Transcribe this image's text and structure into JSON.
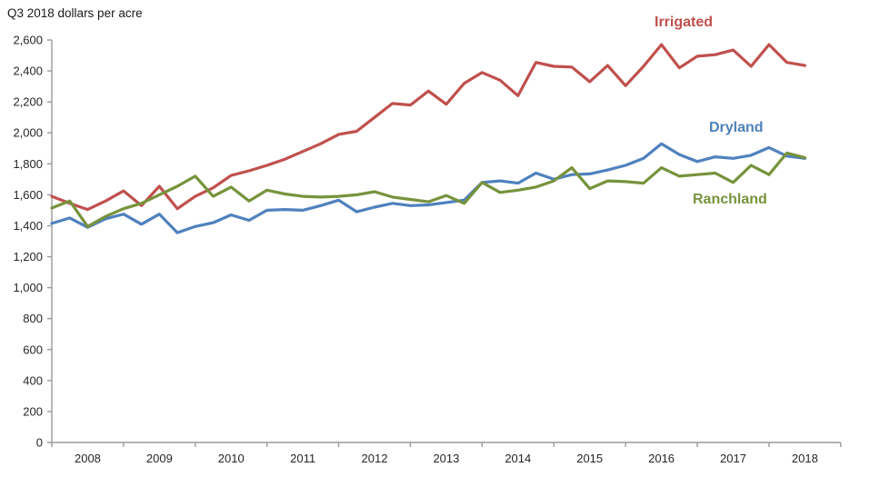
{
  "title": "Q3 2018 dollars per acre",
  "labels": {
    "irrigated": "Irrigated",
    "dryland": "Dryland",
    "ranchland": "Ranchland"
  },
  "colors": {
    "irrigated": "#C0504D",
    "dryland": "#4F81BD",
    "ranchland": "#77933C",
    "axis": "#9a9a9a",
    "text": "#262626"
  },
  "chart_data": {
    "type": "line",
    "title": "Q3 2018 dollars per acre",
    "xlabel": "",
    "ylabel": "Q3 2018 dollars per acre",
    "ylim": [
      0,
      2600
    ],
    "ytick_step": 200,
    "grid": false,
    "legend_position": "inline-labels-right",
    "x_frequency": "quarterly",
    "categories": [
      "2008 Q1",
      "2008 Q2",
      "2008 Q3",
      "2008 Q4",
      "2009 Q1",
      "2009 Q2",
      "2009 Q3",
      "2009 Q4",
      "2010 Q1",
      "2010 Q2",
      "2010 Q3",
      "2010 Q4",
      "2011 Q1",
      "2011 Q2",
      "2011 Q3",
      "2011 Q4",
      "2012 Q1",
      "2012 Q2",
      "2012 Q3",
      "2012 Q4",
      "2013 Q1",
      "2013 Q2",
      "2013 Q3",
      "2013 Q4",
      "2014 Q1",
      "2014 Q2",
      "2014 Q3",
      "2014 Q4",
      "2015 Q1",
      "2015 Q2",
      "2015 Q3",
      "2015 Q4",
      "2016 Q1",
      "2016 Q2",
      "2016 Q3",
      "2016 Q4",
      "2017 Q1",
      "2017 Q2",
      "2017 Q3",
      "2017 Q4",
      "2018 Q1",
      "2018 Q2",
      "2018 Q3"
    ],
    "series": [
      {
        "name": "Irrigated",
        "color": "#C0504D",
        "values": [
          1590,
          1545,
          1505,
          1560,
          1625,
          1530,
          1655,
          1510,
          1590,
          1645,
          1725,
          1755,
          1790,
          1830,
          1880,
          1930,
          1990,
          2010,
          2100,
          2190,
          2180,
          2270,
          2185,
          2320,
          2390,
          2340,
          2240,
          2455,
          2430,
          2425,
          2330,
          2435,
          2305,
          2430,
          2570,
          2420,
          2495,
          2505,
          2535,
          2430,
          2570,
          2455,
          2435
        ]
      },
      {
        "name": "Dryland",
        "color": "#4F81BD",
        "values": [
          1415,
          1450,
          1390,
          1445,
          1475,
          1410,
          1475,
          1355,
          1395,
          1420,
          1470,
          1435,
          1500,
          1505,
          1500,
          1530,
          1565,
          1490,
          1520,
          1545,
          1530,
          1535,
          1550,
          1565,
          1680,
          1690,
          1675,
          1740,
          1700,
          1730,
          1735,
          1760,
          1790,
          1835,
          1930,
          1860,
          1815,
          1845,
          1835,
          1855,
          1905,
          1850,
          1835
        ]
      },
      {
        "name": "Ranchland",
        "color": "#77933C",
        "values": [
          1515,
          1560,
          1395,
          1460,
          1510,
          1545,
          1600,
          1655,
          1720,
          1590,
          1650,
          1560,
          1630,
          1605,
          1590,
          1585,
          1590,
          1600,
          1620,
          1585,
          1570,
          1555,
          1595,
          1545,
          1680,
          1615,
          1630,
          1650,
          1690,
          1775,
          1640,
          1690,
          1685,
          1675,
          1775,
          1720,
          1730,
          1740,
          1680,
          1790,
          1730,
          1870,
          1840
        ]
      }
    ],
    "ytick_labels": [
      "0",
      "200",
      "400",
      "600",
      "800",
      "1,000",
      "1,200",
      "1,400",
      "1,600",
      "1,800",
      "2,000",
      "2,200",
      "2,400",
      "2,600"
    ],
    "xtick_labels": [
      "2008",
      "2009",
      "2010",
      "2011",
      "2012",
      "2013",
      "2014",
      "2015",
      "2016",
      "2017",
      "2018"
    ]
  }
}
